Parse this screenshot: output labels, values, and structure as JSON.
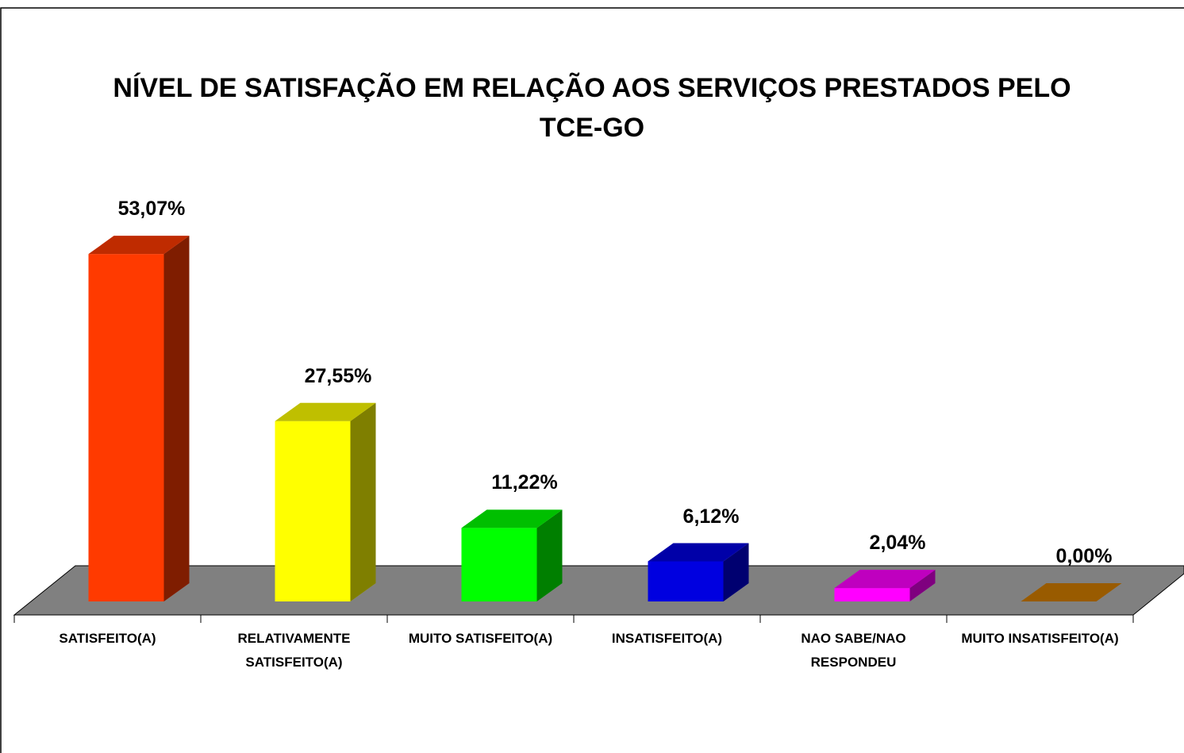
{
  "chart_data": {
    "type": "bar3d",
    "title": "NÍVEL DE SATISFAÇÃO EM RELAÇÃO AOS SERVIÇOS PRESTADOS PELO TCE-GO",
    "categories": [
      "SATISFEITO(A)",
      "RELATIVAMENTE SATISFEITO(A)",
      "MUITO SATISFEITO(A)",
      "INSATISFEITO(A)",
      "NAO SABE/NAO RESPONDEU",
      "MUITO INSATISFEITO(A)"
    ],
    "values": [
      53.07,
      27.55,
      11.22,
      6.12,
      2.04,
      0.0
    ],
    "value_labels": [
      "53,07%",
      "27,55%",
      "11,22%",
      "6,12%",
      "2,04%",
      "0,00%"
    ],
    "colors": [
      "#ff3a00",
      "#ffff00",
      "#00ff00",
      "#0000e0",
      "#ff00ff",
      "#cc7a00"
    ]
  }
}
